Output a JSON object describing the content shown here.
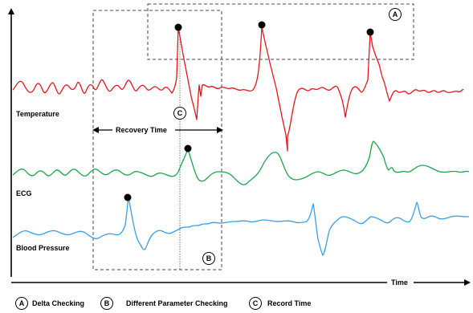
{
  "signals": {
    "temperature": {
      "label": "Temperature",
      "color": "#e3161e"
    },
    "ecg": {
      "label": "ECG",
      "color": "#1aa64a"
    },
    "blood_pressure": {
      "label": "Blood Pressure",
      "color": "#3a9ee6"
    }
  },
  "axis": {
    "x_label": "Time"
  },
  "annotations": {
    "recovery_time": "Recovery Time",
    "marker_a": "A",
    "marker_b": "B",
    "marker_c": "C"
  },
  "legend": [
    {
      "marker": "A",
      "text": "Delta Checking"
    },
    {
      "marker": "B",
      "text": "Different Parameter Checking"
    },
    {
      "marker": "C",
      "text": "Record Time"
    }
  ]
}
